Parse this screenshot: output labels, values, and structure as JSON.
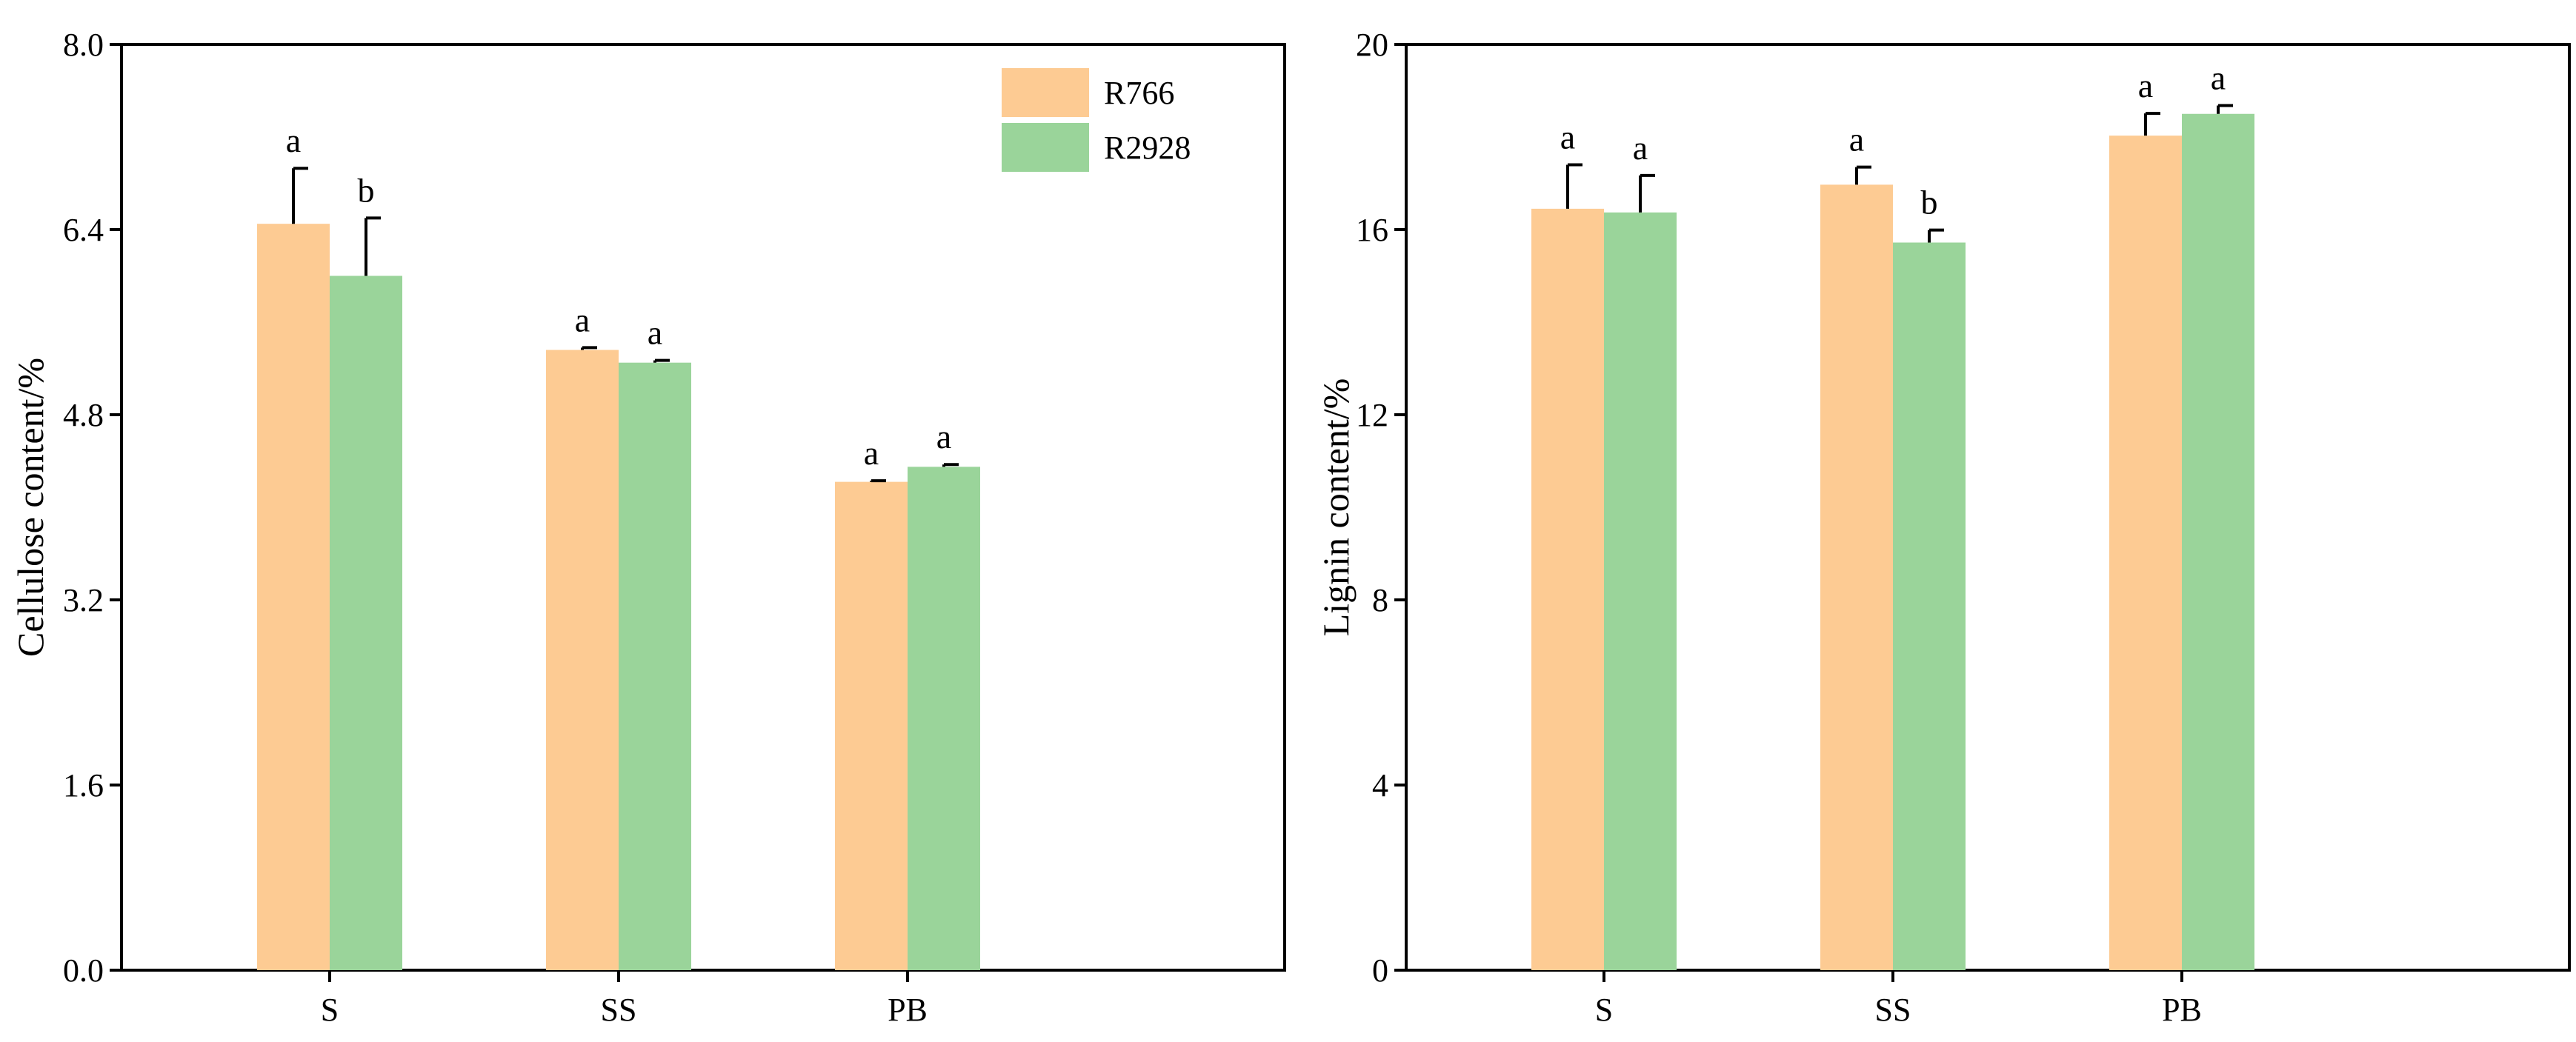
{
  "colors": {
    "r766": "#fdcb93",
    "r2928": "#9ad49a",
    "axis": "#000000"
  },
  "legend": [
    {
      "name": "R766",
      "color": "#fdcb93"
    },
    {
      "name": "R2928",
      "color": "#9ad49a"
    }
  ],
  "chart_data": [
    {
      "type": "bar",
      "title": "",
      "xlabel": "",
      "ylabel": "Cellulose content/%",
      "ylim": [
        0,
        8.0
      ],
      "yticks": [
        "0.0",
        "1.6",
        "3.2",
        "4.8",
        "6.4",
        "8.0"
      ],
      "categories": [
        "S",
        "SS",
        "PB"
      ],
      "legend_position": "top-right",
      "series": [
        {
          "name": "R766",
          "values": [
            6.45,
            5.36,
            4.22
          ],
          "errors": [
            0.48,
            0.02,
            0.01
          ],
          "letters": [
            "a",
            "a",
            "a"
          ]
        },
        {
          "name": "R2928",
          "values": [
            6.0,
            5.25,
            4.35
          ],
          "errors": [
            0.5,
            0.02,
            0.02
          ],
          "letters": [
            "b",
            "a",
            "a"
          ]
        }
      ]
    },
    {
      "type": "bar",
      "title": "",
      "xlabel": "",
      "ylabel": "Lignin content/%",
      "ylim": [
        0,
        20
      ],
      "yticks": [
        "0",
        "4",
        "8",
        "12",
        "16",
        "20"
      ],
      "categories": [
        "S",
        "SS",
        "PB"
      ],
      "legend_position": "none",
      "series": [
        {
          "name": "R766",
          "values": [
            16.45,
            16.97,
            18.03
          ],
          "errors": [
            0.95,
            0.38,
            0.48
          ],
          "letters": [
            "a",
            "a",
            "a"
          ]
        },
        {
          "name": "R2928",
          "values": [
            16.37,
            15.72,
            18.5
          ],
          "errors": [
            0.8,
            0.27,
            0.18
          ],
          "letters": [
            "a",
            "b",
            "a"
          ]
        }
      ]
    }
  ]
}
